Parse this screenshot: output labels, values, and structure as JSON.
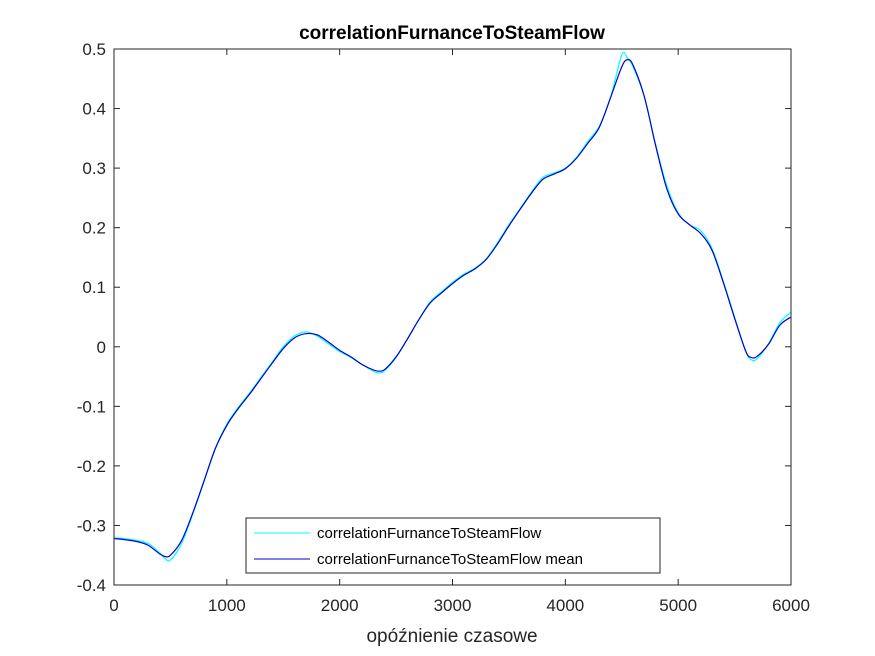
{
  "chart_data": {
    "type": "line",
    "title": "correlationFurnanceToSteamFlow",
    "xlabel": "opóźnienie czasowe",
    "ylabel": "",
    "xlim": [
      0,
      6000
    ],
    "ylim": [
      -0.4,
      0.5
    ],
    "x_ticks": [
      "0",
      "1000",
      "2000",
      "3000",
      "4000",
      "5000",
      "6000"
    ],
    "y_ticks": [
      "-0.4",
      "-0.3",
      "-0.2",
      "-0.1",
      "0",
      "0.1",
      "0.2",
      "0.3",
      "0.4",
      "0.5"
    ],
    "grid": false,
    "legend_position": "bottom-center",
    "series": [
      {
        "name": "correlationFurnanceToSteamFlow",
        "color": "#00ffff",
        "x": [
          0,
          100,
          200,
          300,
          400,
          450,
          500,
          600,
          700,
          800,
          900,
          1000,
          1100,
          1200,
          1300,
          1400,
          1500,
          1600,
          1700,
          1800,
          1900,
          2000,
          2100,
          2200,
          2300,
          2350,
          2400,
          2500,
          2600,
          2700,
          2800,
          2900,
          3000,
          3100,
          3200,
          3300,
          3400,
          3500,
          3600,
          3700,
          3800,
          3900,
          4000,
          4100,
          4200,
          4300,
          4400,
          4500,
          4550,
          4600,
          4700,
          4800,
          4900,
          5000,
          5100,
          5200,
          5300,
          5400,
          5500,
          5600,
          5650,
          5700,
          5800,
          5900,
          6000
        ],
        "y": [
          -0.321,
          -0.322,
          -0.325,
          -0.33,
          -0.345,
          -0.355,
          -0.358,
          -0.33,
          -0.28,
          -0.225,
          -0.17,
          -0.13,
          -0.102,
          -0.078,
          -0.052,
          -0.026,
          0.0,
          0.018,
          0.025,
          0.018,
          0.005,
          -0.008,
          -0.018,
          -0.03,
          -0.041,
          -0.044,
          -0.04,
          -0.018,
          0.013,
          0.045,
          0.075,
          0.092,
          0.108,
          0.122,
          0.132,
          0.148,
          0.175,
          0.205,
          0.232,
          0.26,
          0.284,
          0.292,
          0.3,
          0.318,
          0.345,
          0.37,
          0.418,
          0.49,
          0.485,
          0.47,
          0.42,
          0.34,
          0.27,
          0.225,
          0.205,
          0.195,
          0.165,
          0.11,
          0.05,
          -0.008,
          -0.022,
          -0.02,
          0.005,
          0.04,
          0.058
        ]
      },
      {
        "name": "correlationFurnanceToSteamFlow mean",
        "color": "#0000cd",
        "x": [
          0,
          100,
          200,
          300,
          400,
          450,
          500,
          600,
          700,
          800,
          900,
          1000,
          1100,
          1200,
          1300,
          1400,
          1500,
          1600,
          1700,
          1800,
          1900,
          2000,
          2100,
          2200,
          2300,
          2350,
          2400,
          2500,
          2600,
          2700,
          2800,
          2900,
          3000,
          3100,
          3200,
          3300,
          3400,
          3500,
          3600,
          3700,
          3800,
          3900,
          4000,
          4100,
          4200,
          4300,
          4400,
          4500,
          4550,
          4600,
          4700,
          4800,
          4900,
          5000,
          5100,
          5200,
          5300,
          5400,
          5500,
          5600,
          5650,
          5700,
          5800,
          5900,
          6000
        ],
        "y": [
          -0.322,
          -0.324,
          -0.327,
          -0.333,
          -0.347,
          -0.352,
          -0.35,
          -0.325,
          -0.278,
          -0.224,
          -0.17,
          -0.132,
          -0.104,
          -0.08,
          -0.054,
          -0.028,
          -0.003,
          0.015,
          0.022,
          0.02,
          0.008,
          -0.006,
          -0.017,
          -0.03,
          -0.039,
          -0.041,
          -0.038,
          -0.017,
          0.013,
          0.045,
          0.073,
          0.09,
          0.106,
          0.12,
          0.131,
          0.147,
          0.173,
          0.203,
          0.231,
          0.258,
          0.281,
          0.29,
          0.299,
          0.317,
          0.342,
          0.368,
          0.418,
          0.47,
          0.482,
          0.473,
          0.42,
          0.338,
          0.265,
          0.223,
          0.205,
          0.19,
          0.162,
          0.108,
          0.048,
          -0.008,
          -0.018,
          -0.016,
          0.004,
          0.036,
          0.05
        ]
      }
    ]
  }
}
